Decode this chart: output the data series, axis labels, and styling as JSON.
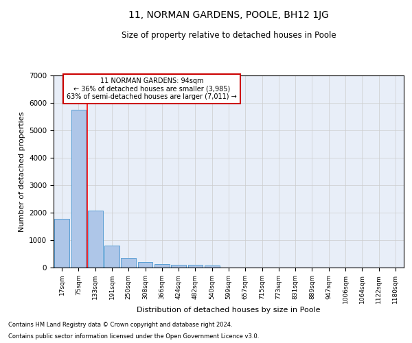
{
  "title": "11, NORMAN GARDENS, POOLE, BH12 1JG",
  "subtitle": "Size of property relative to detached houses in Poole",
  "xlabel": "Distribution of detached houses by size in Poole",
  "ylabel": "Number of detached properties",
  "bar_color": "#aec6e8",
  "bar_edge_color": "#5a9fd4",
  "grid_color": "#cccccc",
  "bg_color": "#e8eef8",
  "categories": [
    "17sqm",
    "75sqm",
    "133sqm",
    "191sqm",
    "250sqm",
    "308sqm",
    "366sqm",
    "424sqm",
    "482sqm",
    "540sqm",
    "599sqm",
    "657sqm",
    "715sqm",
    "773sqm",
    "831sqm",
    "889sqm",
    "947sqm",
    "1006sqm",
    "1064sqm",
    "1122sqm",
    "1180sqm"
  ],
  "values": [
    1780,
    5750,
    2070,
    800,
    340,
    200,
    130,
    110,
    100,
    80,
    0,
    0,
    0,
    0,
    0,
    0,
    0,
    0,
    0,
    0,
    0
  ],
  "ylim": [
    0,
    7000
  ],
  "yticks": [
    0,
    1000,
    2000,
    3000,
    4000,
    5000,
    6000,
    7000
  ],
  "property_line_x": 1.5,
  "annotation_text": "11 NORMAN GARDENS: 94sqm\n← 36% of detached houses are smaller (3,985)\n63% of semi-detached houses are larger (7,011) →",
  "annotation_box_color": "#cc0000",
  "footnote1": "Contains HM Land Registry data © Crown copyright and database right 2024.",
  "footnote2": "Contains public sector information licensed under the Open Government Licence v3.0."
}
